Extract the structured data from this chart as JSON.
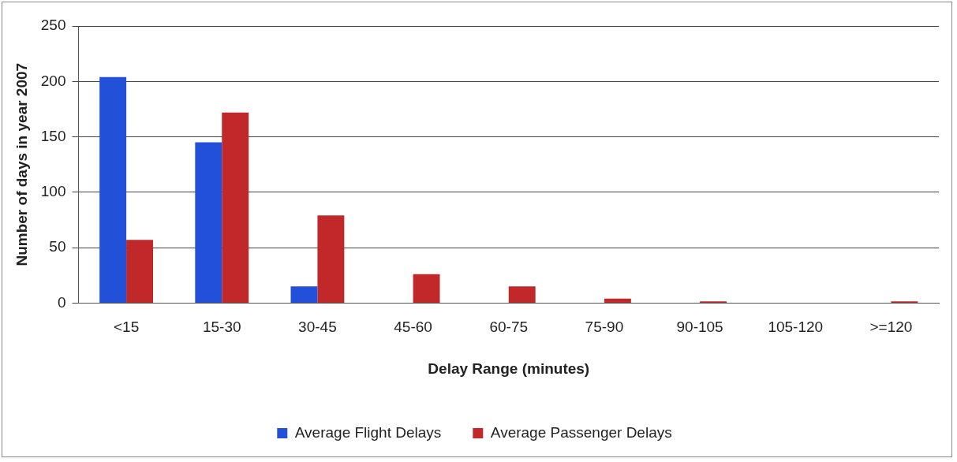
{
  "chart_data": {
    "type": "bar",
    "xlabel": "Delay Range (minutes)",
    "ylabel": "Number of days in year 2007",
    "categories": [
      "<15",
      "15-30",
      "30-45",
      "45-60",
      "60-75",
      "75-90",
      "90-105",
      "105-120",
      ">=120"
    ],
    "series": [
      {
        "name": "Average Flight Delays",
        "color": "#2350d8",
        "values": [
          204,
          145,
          15,
          0,
          0,
          0,
          0,
          0,
          0
        ]
      },
      {
        "name": "Average Passenger Delays",
        "color": "#c0282a",
        "values": [
          57,
          172,
          79,
          26,
          15,
          4,
          1.5,
          0,
          1.5
        ]
      }
    ],
    "ylim": [
      0,
      250
    ],
    "yticks": [
      0,
      50,
      100,
      150,
      200,
      250
    ],
    "grid": "y",
    "legend": "bottom"
  }
}
